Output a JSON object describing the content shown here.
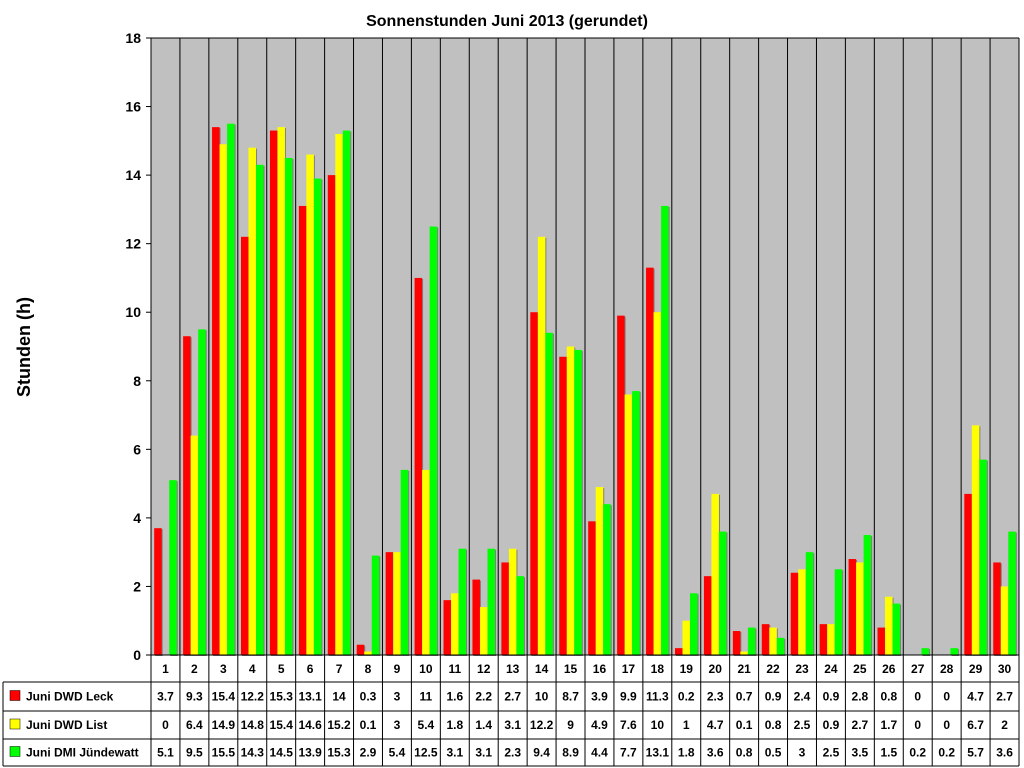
{
  "chart_data": {
    "type": "bar",
    "title": "Sonnenstunden Juni 2013 (gerundet)",
    "xlabel": "",
    "ylabel": "Stunden (h)",
    "ylim": [
      0,
      18
    ],
    "yticks": [
      0,
      2,
      4,
      6,
      8,
      10,
      12,
      14,
      16,
      18
    ],
    "grid": "vertical",
    "legend": "data-table-left",
    "categories": [
      "1",
      "2",
      "3",
      "4",
      "5",
      "6",
      "7",
      "8",
      "9",
      "10",
      "11",
      "12",
      "13",
      "14",
      "15",
      "16",
      "17",
      "18",
      "19",
      "20",
      "21",
      "22",
      "23",
      "24",
      "25",
      "26",
      "27",
      "28",
      "29",
      "30"
    ],
    "series": [
      {
        "name": "Juni DWD Leck",
        "color": "#ff0000",
        "values": [
          3.7,
          9.3,
          15.4,
          12.2,
          15.3,
          13.1,
          14,
          0.3,
          3,
          11,
          1.6,
          2.2,
          2.7,
          10,
          8.7,
          3.9,
          9.9,
          11.3,
          0.2,
          2.3,
          0.7,
          0.9,
          2.4,
          0.9,
          2.8,
          0.8,
          0,
          0,
          4.7,
          2.7
        ]
      },
      {
        "name": "Juni DWD List",
        "color": "#ffff00",
        "values": [
          0,
          6.4,
          14.9,
          14.8,
          15.4,
          14.6,
          15.2,
          0.1,
          3,
          5.4,
          1.8,
          1.4,
          3.1,
          12.2,
          9,
          4.9,
          7.6,
          10,
          1,
          4.7,
          0.1,
          0.8,
          2.5,
          0.9,
          2.7,
          1.7,
          0,
          0,
          6.7,
          2
        ]
      },
      {
        "name": "Juni DMI Jündewatt",
        "color": "#00ff00",
        "values": [
          5.1,
          9.5,
          15.5,
          14.3,
          14.5,
          13.9,
          15.3,
          2.9,
          5.4,
          12.5,
          3.1,
          3.1,
          2.3,
          9.4,
          8.9,
          4.4,
          7.7,
          13.1,
          1.8,
          3.6,
          0.8,
          0.5,
          3,
          2.5,
          3.5,
          1.5,
          0.2,
          0.2,
          5.7,
          3.6
        ]
      }
    ],
    "plot_background": "#c0c0c0"
  }
}
